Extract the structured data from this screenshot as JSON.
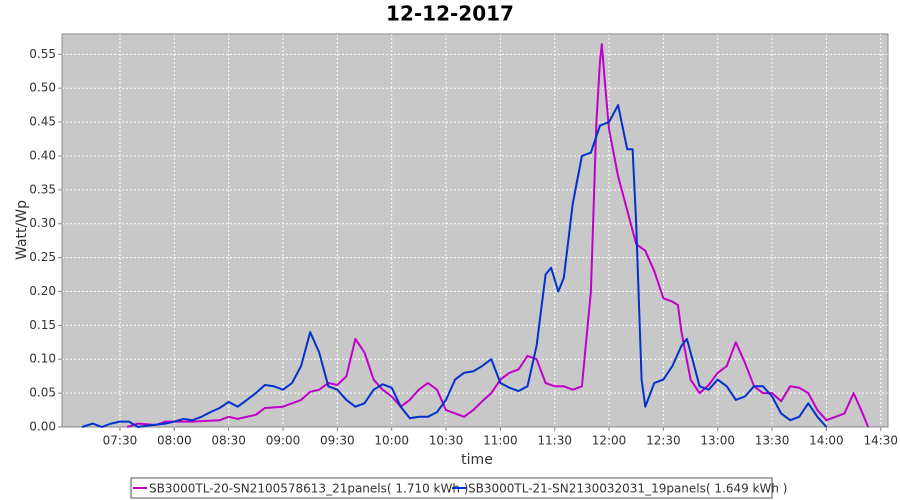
{
  "chart_data": {
    "type": "line",
    "title": "12-12-2017",
    "xlabel": "time",
    "ylabel": "Watt/Wp",
    "xlim": [
      "06:58",
      "14:34"
    ],
    "xticks": [
      "07:30",
      "08:00",
      "08:30",
      "09:00",
      "09:30",
      "10:00",
      "10:30",
      "11:00",
      "11:30",
      "12:00",
      "12:30",
      "13:00",
      "13:30",
      "14:00",
      "14:30"
    ],
    "ylim": [
      0,
      0.58
    ],
    "yticks": [
      {
        "value": 0,
        "label": "0.00"
      },
      0.05,
      {
        "value": 0.1,
        "label": "0.10"
      },
      0.15,
      {
        "value": 0.2,
        "label": "0.20"
      },
      0.25,
      {
        "value": 0.3,
        "label": "0.30"
      },
      0.35,
      {
        "value": 0.4,
        "label": "0.40"
      },
      0.45,
      {
        "value": 0.5,
        "label": "0.50"
      },
      0.55
    ],
    "grid": true,
    "legend": "bottom",
    "series": [
      {
        "name": "SB3000TL-20-SN2100578613_21panels( 1.710 kWh )",
        "color": "#c000c8",
        "x": [
          "07:34",
          "07:40",
          "07:50",
          "07:55",
          "08:10",
          "08:25",
          "08:30",
          "08:35",
          "08:45",
          "08:50",
          "09:00",
          "09:05",
          "09:10",
          "09:15",
          "09:20",
          "09:25",
          "09:30",
          "09:35",
          "09:40",
          "09:45",
          "09:50",
          "09:55",
          "10:00",
          "10:05",
          "10:10",
          "10:15",
          "10:20",
          "10:25",
          "10:30",
          "10:35",
          "10:40",
          "10:45",
          "10:50",
          "10:55",
          "11:00",
          "11:05",
          "11:10",
          "11:15",
          "11:20",
          "11:25",
          "11:30",
          "11:35",
          "11:40",
          "11:45",
          "11:50",
          "11:53",
          "11:55",
          "11:56",
          "11:58",
          "12:00",
          "12:05",
          "12:10",
          "12:15",
          "12:20",
          "12:25",
          "12:30",
          "12:35",
          "12:38",
          "12:40",
          "12:45",
          "12:50",
          "12:55",
          "13:00",
          "13:05",
          "13:10",
          "13:15",
          "13:20",
          "13:25",
          "13:30",
          "13:35",
          "13:40",
          "13:45",
          "13:50",
          "13:55",
          "14:00",
          "14:05",
          "14:10",
          "14:15",
          "14:20",
          "14:23"
        ],
        "values": [
          0,
          0.005,
          0.003,
          0.008,
          0.008,
          0.01,
          0.015,
          0.012,
          0.018,
          0.028,
          0.03,
          0.035,
          0.04,
          0.052,
          0.055,
          0.065,
          0.062,
          0.075,
          0.13,
          0.11,
          0.07,
          0.055,
          0.045,
          0.03,
          0.04,
          0.055,
          0.065,
          0.055,
          0.025,
          0.02,
          0.015,
          0.025,
          0.038,
          0.05,
          0.07,
          0.08,
          0.085,
          0.105,
          0.1,
          0.065,
          0.06,
          0.06,
          0.055,
          0.06,
          0.2,
          0.45,
          0.54,
          0.565,
          0.5,
          0.44,
          0.37,
          0.32,
          0.27,
          0.26,
          0.23,
          0.19,
          0.185,
          0.18,
          0.14,
          0.07,
          0.05,
          0.062,
          0.08,
          0.09,
          0.125,
          0.095,
          0.06,
          0.05,
          0.05,
          0.038,
          0.06,
          0.058,
          0.05,
          0.025,
          0.01,
          0.015,
          0.02,
          0.05,
          0.02,
          0
        ]
      },
      {
        "name": "SB3000TL-21-SN2130032031_19panels( 1.649 kWh )",
        "color": "#0033cc",
        "x": [
          "07:09",
          "07:15",
          "07:20",
          "07:25",
          "07:30",
          "07:35",
          "07:40",
          "07:45",
          "07:55",
          "08:00",
          "08:05",
          "08:10",
          "08:15",
          "08:20",
          "08:25",
          "08:30",
          "08:35",
          "08:40",
          "08:45",
          "08:50",
          "08:55",
          "09:00",
          "09:05",
          "09:10",
          "09:15",
          "09:20",
          "09:25",
          "09:30",
          "09:35",
          "09:40",
          "09:45",
          "09:50",
          "09:55",
          "10:00",
          "10:05",
          "10:10",
          "10:15",
          "10:20",
          "10:25",
          "10:30",
          "10:35",
          "10:40",
          "10:45",
          "10:50",
          "10:55",
          "11:00",
          "11:05",
          "11:10",
          "11:15",
          "11:20",
          "11:25",
          "11:28",
          "11:32",
          "11:35",
          "11:40",
          "11:45",
          "11:50",
          "11:55",
          "12:00",
          "12:05",
          "12:10",
          "12:13",
          "12:15",
          "12:18",
          "12:20",
          "12:25",
          "12:30",
          "12:35",
          "12:40",
          "12:43",
          "12:45",
          "12:50",
          "12:55",
          "13:00",
          "13:05",
          "13:10",
          "13:15",
          "13:20",
          "13:25",
          "13:30",
          "13:35",
          "13:40",
          "13:45",
          "13:50",
          "13:55",
          "14:00"
        ],
        "values": [
          0,
          0.005,
          0,
          0.005,
          0.008,
          0.008,
          0,
          0.002,
          0.005,
          0.008,
          0.012,
          0.01,
          0.015,
          0.022,
          0.028,
          0.037,
          0.03,
          0.04,
          0.05,
          0.062,
          0.06,
          0.055,
          0.065,
          0.09,
          0.14,
          0.11,
          0.06,
          0.055,
          0.04,
          0.03,
          0.035,
          0.055,
          0.063,
          0.058,
          0.03,
          0.013,
          0.015,
          0.015,
          0.022,
          0.04,
          0.07,
          0.08,
          0.082,
          0.09,
          0.1,
          0.065,
          0.058,
          0.053,
          0.06,
          0.12,
          0.225,
          0.235,
          0.2,
          0.22,
          0.33,
          0.4,
          0.405,
          0.445,
          0.45,
          0.475,
          0.41,
          0.41,
          0.3,
          0.07,
          0.03,
          0.065,
          0.07,
          0.09,
          0.12,
          0.13,
          0.11,
          0.06,
          0.055,
          0.07,
          0.06,
          0.04,
          0.045,
          0.06,
          0.06,
          0.045,
          0.02,
          0.01,
          0.015,
          0.035,
          0.015,
          0
        ]
      }
    ]
  }
}
